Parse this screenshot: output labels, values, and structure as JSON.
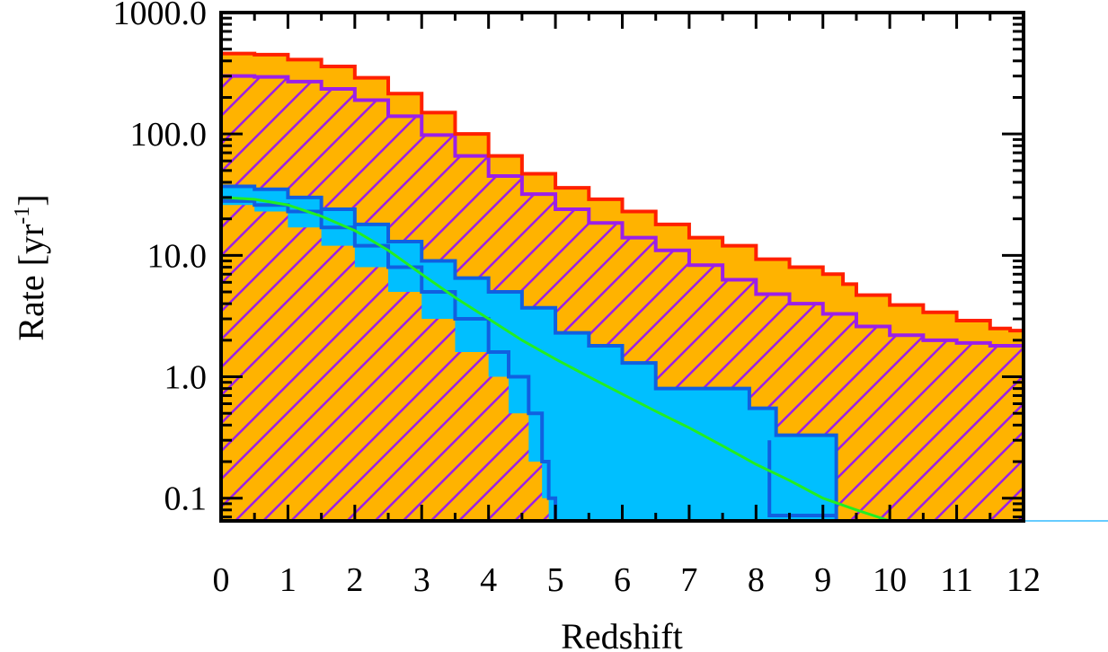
{
  "chart_data": {
    "type": "area",
    "xlabel": "Redshift",
    "ylabel": "Rate [yr",
    "ylabel_sup": "-1",
    "ylabel_close": "]",
    "xlim": [
      0,
      12
    ],
    "ylim": [
      0.065,
      1000
    ],
    "y_scale": "log",
    "x_ticks": [
      0,
      1,
      2,
      3,
      4,
      5,
      6,
      7,
      8,
      9,
      10,
      11,
      12
    ],
    "x_tick_labels": [
      "0",
      "1",
      "2",
      "3",
      "4",
      "5",
      "6",
      "7",
      "8",
      "9",
      "10",
      "11",
      "12"
    ],
    "y_ticks": [
      0.1,
      1,
      10,
      100,
      1000
    ],
    "y_tick_labels": [
      "0.1",
      "1.0",
      "10.0",
      "100.0",
      "1000.0"
    ],
    "grid": false,
    "series": [
      {
        "role": "outer-total",
        "color": "#ff2000",
        "fill": "#ffb300",
        "points": [
          [
            0,
            460
          ],
          [
            0.5,
            450
          ],
          [
            1,
            410
          ],
          [
            1.5,
            360
          ],
          [
            2,
            290
          ],
          [
            2.5,
            215
          ],
          [
            3,
            150
          ],
          [
            3.5,
            100
          ],
          [
            4,
            66
          ],
          [
            4.5,
            47
          ],
          [
            5,
            36
          ],
          [
            5.5,
            29
          ],
          [
            6,
            23
          ],
          [
            6.5,
            18
          ],
          [
            7,
            14
          ],
          [
            7.5,
            12
          ],
          [
            8,
            9.3
          ],
          [
            8.5,
            8.0
          ],
          [
            9,
            7.0
          ],
          [
            9.3,
            5.8
          ],
          [
            9.5,
            4.7
          ],
          [
            10,
            3.9
          ],
          [
            10.5,
            3.4
          ],
          [
            11,
            2.9
          ],
          [
            11.5,
            2.5
          ],
          [
            11.8,
            2.4
          ],
          [
            12,
            2.2
          ]
        ]
      },
      {
        "role": "hatched-subset",
        "color": "#9b1fe8",
        "fill": "#ffb300",
        "hatch": "#9b1fe8",
        "points": [
          [
            0,
            300
          ],
          [
            0.5,
            295
          ],
          [
            1,
            270
          ],
          [
            1.5,
            235
          ],
          [
            2,
            190
          ],
          [
            2.5,
            140
          ],
          [
            3,
            98
          ],
          [
            3.5,
            66
          ],
          [
            4,
            45
          ],
          [
            4.5,
            32
          ],
          [
            5,
            24
          ],
          [
            5.5,
            18.5
          ],
          [
            6,
            14
          ],
          [
            6.5,
            11
          ],
          [
            7,
            8.3
          ],
          [
            7.5,
            6.3
          ],
          [
            8,
            4.8
          ],
          [
            8.5,
            4.0
          ],
          [
            9,
            3.3
          ],
          [
            9.5,
            2.6
          ],
          [
            10,
            2.2
          ],
          [
            10.5,
            2.0
          ],
          [
            11,
            1.9
          ],
          [
            11.5,
            1.8
          ],
          [
            12,
            1.5
          ]
        ]
      },
      {
        "role": "band-upper",
        "color": "#1060e0",
        "fill": "#00bfff",
        "points": [
          [
            0,
            37
          ],
          [
            0.5,
            35
          ],
          [
            1,
            30
          ],
          [
            1.5,
            24
          ],
          [
            2,
            18
          ],
          [
            2.5,
            13
          ],
          [
            3,
            9
          ],
          [
            3.5,
            6.5
          ],
          [
            4,
            5
          ],
          [
            4.5,
            3.7
          ],
          [
            5,
            2.3
          ],
          [
            5.5,
            1.8
          ],
          [
            6,
            1.3
          ],
          [
            6.5,
            0.8
          ],
          [
            7,
            0.8
          ],
          [
            7.5,
            0.8
          ],
          [
            7.8,
            0.8
          ],
          [
            7.9,
            0.55
          ],
          [
            8.2,
            0.55
          ],
          [
            8.3,
            0.33
          ],
          [
            9,
            0.33
          ],
          [
            9.2,
            0.33
          ]
        ]
      },
      {
        "role": "band-lower",
        "color": "#1060e0",
        "fill": "#00bfff",
        "points": [
          [
            0,
            28
          ],
          [
            0.5,
            26
          ],
          [
            1,
            23
          ],
          [
            1.5,
            17
          ],
          [
            2,
            12
          ],
          [
            2.5,
            8
          ],
          [
            3,
            5
          ],
          [
            3.5,
            3.0
          ],
          [
            4,
            1.6
          ],
          [
            4.3,
            1.0
          ],
          [
            4.6,
            0.5
          ],
          [
            4.8,
            0.2
          ],
          [
            4.9,
            0.1
          ],
          [
            5,
            0.065
          ]
        ]
      },
      {
        "role": "model-curve",
        "color": "#22ee22",
        "points": [
          [
            0,
            30
          ],
          [
            0.5,
            29
          ],
          [
            1,
            26
          ],
          [
            1.5,
            21
          ],
          [
            2,
            16
          ],
          [
            2.5,
            11
          ],
          [
            3,
            7
          ],
          [
            3.5,
            4.5
          ],
          [
            4,
            3.0
          ],
          [
            4.5,
            2.0
          ],
          [
            5,
            1.4
          ],
          [
            5.5,
            1.0
          ],
          [
            6,
            0.72
          ],
          [
            6.5,
            0.52
          ],
          [
            7,
            0.38
          ],
          [
            7.5,
            0.27
          ],
          [
            8,
            0.19
          ],
          [
            8.5,
            0.14
          ],
          [
            9,
            0.1
          ],
          [
            9.5,
            0.08
          ],
          [
            10,
            0.065
          ]
        ]
      },
      {
        "role": "model-step",
        "color": "#1060e0",
        "points": [
          [
            0,
            0.065
          ],
          [
            1,
            0.065
          ],
          [
            2,
            0.065
          ],
          [
            3,
            0.065
          ],
          [
            4,
            0.065
          ],
          [
            5,
            0.065
          ],
          [
            6,
            0.065
          ],
          [
            7,
            0.065
          ],
          [
            8,
            0.065
          ],
          [
            9,
            0.065
          ]
        ]
      }
    ],
    "baseline_color": "#66ccff"
  }
}
